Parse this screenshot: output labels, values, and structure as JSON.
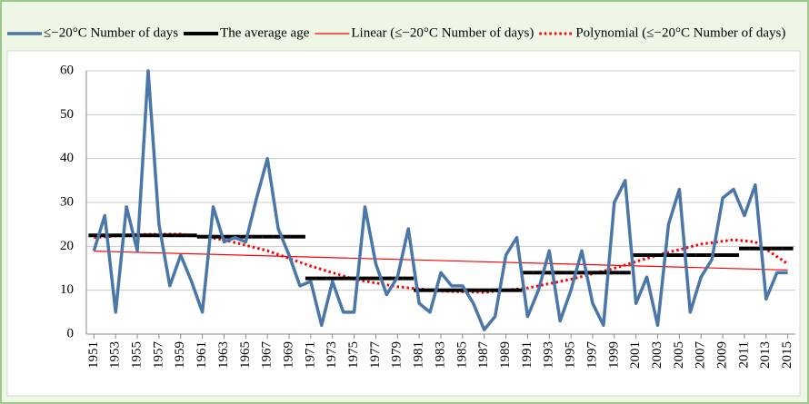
{
  "chart_data": {
    "type": "line",
    "x": [
      1951,
      1952,
      1953,
      1954,
      1955,
      1956,
      1957,
      1958,
      1959,
      1960,
      1961,
      1962,
      1963,
      1964,
      1965,
      1966,
      1967,
      1968,
      1969,
      1970,
      1971,
      1972,
      1973,
      1974,
      1975,
      1976,
      1977,
      1978,
      1979,
      1980,
      1981,
      1982,
      1983,
      1984,
      1985,
      1986,
      1987,
      1988,
      1989,
      1990,
      1991,
      1992,
      1993,
      1994,
      1995,
      1996,
      1997,
      1998,
      1999,
      2000,
      2001,
      2002,
      2003,
      2004,
      2005,
      2006,
      2007,
      2008,
      2009,
      2010,
      2011,
      2012,
      2013,
      2014,
      2015
    ],
    "series": [
      {
        "name": "≤−20°C Number of days",
        "color": "#4a76a8",
        "style": "line",
        "values": [
          19,
          27,
          5,
          29,
          19,
          60,
          25,
          11,
          18,
          12,
          5,
          29,
          21,
          22,
          21,
          31,
          40,
          24,
          18,
          11,
          12,
          2,
          12,
          5,
          5,
          29,
          16,
          9,
          13,
          24,
          7,
          5,
          14,
          11,
          11,
          7,
          1,
          4,
          18,
          22,
          4,
          10,
          19,
          3,
          10,
          19,
          7,
          2,
          30,
          35,
          7,
          13,
          2,
          25,
          33,
          5,
          13,
          17,
          31,
          33,
          27,
          34,
          8,
          14,
          14
        ]
      },
      {
        "name": "The average age",
        "color": "#000000",
        "style": "step",
        "values": [
          22.5,
          22.5,
          22.5,
          22.5,
          22.5,
          22.5,
          22.5,
          22.5,
          22.5,
          22.5,
          22.2,
          22.2,
          22.2,
          22.2,
          22.2,
          22.2,
          22.2,
          22.2,
          22.2,
          22.2,
          12.7,
          12.7,
          12.7,
          12.7,
          12.7,
          12.7,
          12.7,
          12.7,
          12.7,
          12.7,
          10,
          10,
          10,
          10,
          10,
          10,
          10,
          10,
          10,
          10,
          14,
          14,
          14,
          14,
          14,
          14,
          14,
          14,
          14,
          14,
          18,
          18,
          18,
          18,
          18,
          18,
          18,
          18,
          18,
          18,
          19.5,
          19.5,
          19.5,
          19.5,
          19.5
        ]
      },
      {
        "name": "Linear (≤−20°C Number of days)",
        "color": "#ff0000",
        "style": "thin",
        "x": [
          1951,
          2015
        ],
        "values": [
          18.9,
          14.6
        ]
      },
      {
        "name": "Polynomial (≤−20°C Number of days)",
        "color": "#ff0000",
        "style": "dotted",
        "x": [
          1951,
          1955,
          1959,
          1963,
          1967,
          1971,
          1975,
          1979,
          1983,
          1987,
          1991,
          1995,
          1999,
          2003,
          2007,
          2010,
          2012,
          2015
        ],
        "values": [
          22,
          22.7,
          22.8,
          21.5,
          19,
          15.5,
          12.5,
          10.8,
          9.8,
          9.5,
          10.5,
          12.5,
          15,
          18,
          20.5,
          21.5,
          21,
          16
        ]
      }
    ],
    "xlim": [
      1950.3,
      2015.7
    ],
    "xticks": [
      1951,
      1953,
      1955,
      1957,
      1959,
      1961,
      1963,
      1965,
      1967,
      1969,
      1971,
      1973,
      1975,
      1977,
      1979,
      1981,
      1983,
      1985,
      1987,
      1989,
      1991,
      1993,
      1995,
      1997,
      1999,
      2001,
      2003,
      2005,
      2007,
      2009,
      2011,
      2013,
      2015
    ],
    "ylim": [
      0,
      60
    ],
    "yticks": [
      0,
      10,
      20,
      30,
      40,
      50,
      60
    ],
    "grid": true
  }
}
